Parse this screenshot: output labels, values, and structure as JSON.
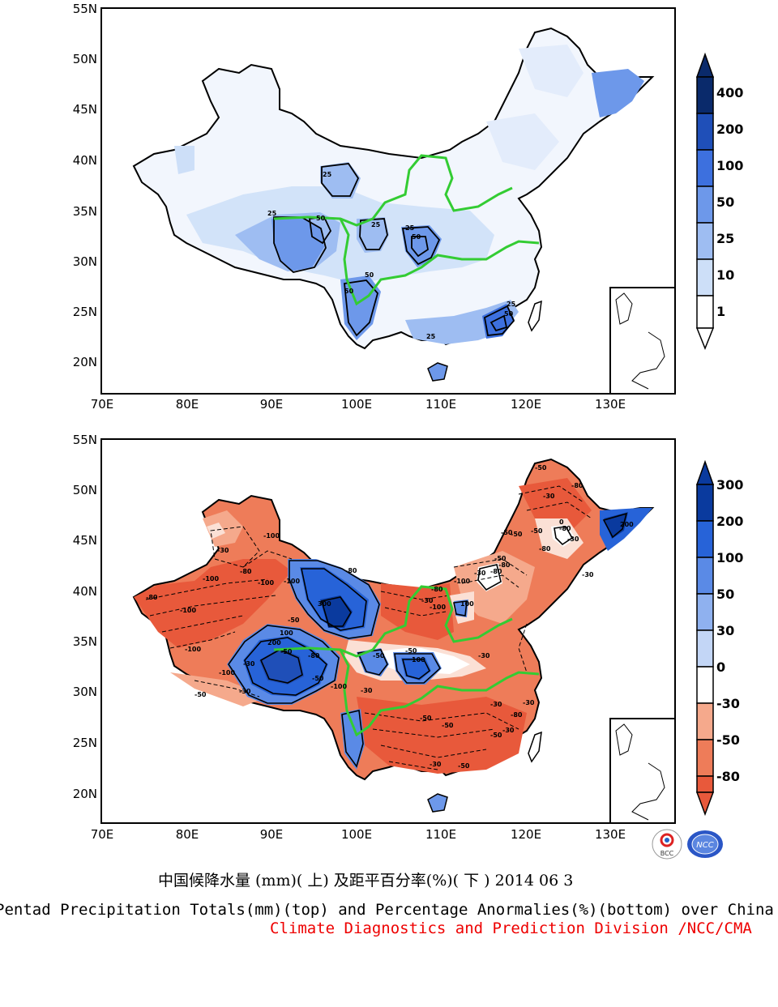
{
  "top_map": {
    "title": "Pentad Precipitation Totals (mm)",
    "lat_labels": [
      "55N",
      "50N",
      "45N",
      "40N",
      "35N",
      "30N",
      "25N",
      "20N"
    ],
    "lon_labels": [
      "70E",
      "80E",
      "90E",
      "100E",
      "110E",
      "120E",
      "130E"
    ],
    "colorbar": {
      "labels": [
        "400",
        "200",
        "100",
        "50",
        "25",
        "10",
        "1"
      ],
      "colors": [
        "#0a2a6b",
        "#1f4fb8",
        "#3d70de",
        "#6d98ea",
        "#9ebdf2",
        "#cddff8",
        "#ffffff"
      ]
    },
    "contour_labels": [
      "25",
      "25",
      "50",
      "25",
      "50",
      "25",
      "50",
      "50",
      "25",
      "50",
      "25"
    ]
  },
  "bottom_map": {
    "title": "Percentage Anomalies (%)",
    "lat_labels": [
      "55N",
      "50N",
      "45N",
      "40N",
      "35N",
      "30N",
      "25N",
      "20N"
    ],
    "lon_labels": [
      "70E",
      "80E",
      "90E",
      "100E",
      "110E",
      "120E",
      "130E"
    ],
    "colorbar": {
      "labels": [
        "300",
        "200",
        "100",
        "50",
        "30",
        "0",
        "-30",
        "-50",
        "-80"
      ],
      "colors": [
        "#0a3a9e",
        "#2763d8",
        "#5a8ae6",
        "#8fb1ef",
        "#c3d6f6",
        "#ffffff",
        "#fbe0d5",
        "#f5a98c",
        "#ee7c59",
        "#e8593b"
      ]
    },
    "contour_labels": [
      "-100",
      "-30",
      "-80",
      "-100",
      "-100",
      "-100",
      "-100",
      "-100",
      "-100",
      "-80",
      "-50",
      "-80",
      "-100",
      "-30",
      "-80",
      "300",
      "-50",
      "-30",
      "100",
      "200",
      "-80",
      "-100",
      "-50",
      "-30",
      "-50",
      "-30",
      "100",
      "-50",
      "-30",
      "-50",
      "-50",
      "-30",
      "-50",
      "-50",
      "-30",
      "-80",
      "-30",
      "-50",
      "-80",
      "-50",
      "-80",
      "-80",
      "0",
      "200",
      "100",
      "-30",
      "-50",
      "-30",
      "-50",
      "-50",
      "-80",
      "-30",
      "-100",
      "-30",
      "-80",
      "-50",
      "-30"
    ]
  },
  "captions": {
    "cn": "中国候降水量 (mm)( 上) 及距平百分率(%)( 下 ) 2014 06 3",
    "en": "Pentad Precipitation Totals(mm)(top) and Percentage Anormalies(%)(bottom) over China",
    "credit": "Climate Diagnostics and Prediction Division /NCC/CMA"
  },
  "logos": {
    "bcc": "BCC",
    "ncc": "NCC"
  }
}
